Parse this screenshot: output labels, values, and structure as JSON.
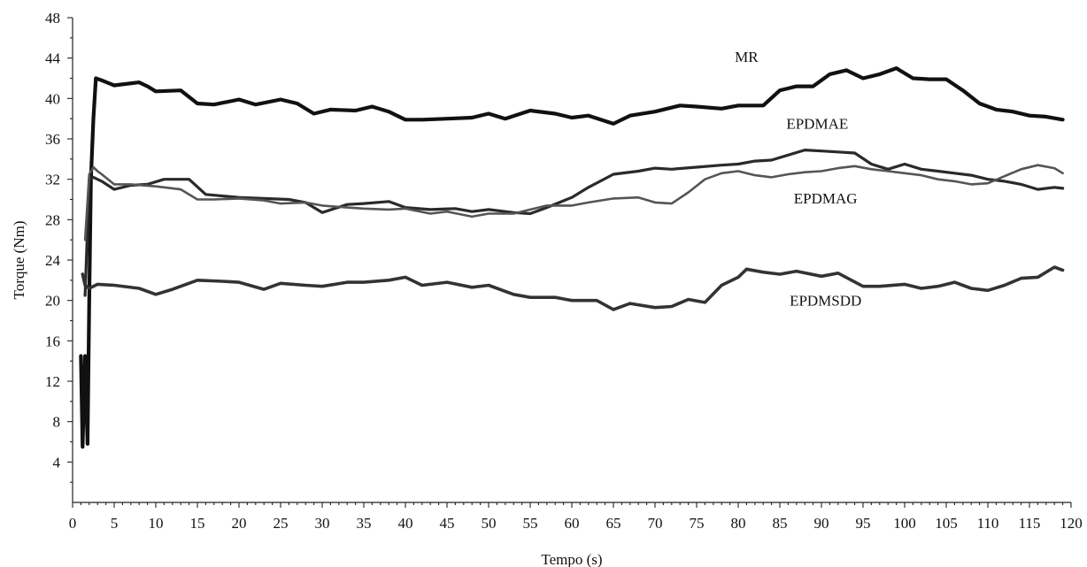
{
  "chart_data": {
    "type": "line",
    "title": "",
    "xlabel": "Tempo (s)",
    "ylabel": "Torque (Nm)",
    "xlim": [
      0,
      120
    ],
    "ylim": [
      0,
      48
    ],
    "x_ticks": [
      0,
      5,
      10,
      15,
      20,
      25,
      30,
      35,
      40,
      45,
      50,
      55,
      60,
      65,
      70,
      75,
      80,
      85,
      90,
      95,
      100,
      105,
      110,
      115,
      120
    ],
    "y_ticks": [
      4,
      8,
      12,
      16,
      20,
      24,
      28,
      32,
      36,
      40,
      44,
      48
    ],
    "grid": false,
    "legend": "none (series labeled directly on plot)",
    "series": [
      {
        "name": "MR",
        "color": "#111111",
        "x": [
          1.0,
          1.2,
          1.5,
          1.8,
          2.0,
          2.2,
          2.5,
          2.8,
          3.5,
          5,
          8,
          9,
          10,
          13,
          15,
          17,
          20,
          22,
          25,
          27,
          29,
          31,
          34,
          36,
          38,
          40,
          42,
          45,
          48,
          50,
          52,
          55,
          58,
          60,
          62,
          65,
          67,
          70,
          73,
          75,
          78,
          80,
          83,
          85,
          87,
          89,
          91,
          93,
          95,
          97,
          99,
          101,
          103,
          105,
          107,
          109,
          111,
          113,
          115,
          117,
          119
        ],
        "y": [
          14.5,
          5.5,
          14.5,
          5.8,
          20.0,
          32.0,
          38.0,
          42.0,
          41.8,
          41.3,
          41.6,
          41.2,
          40.7,
          40.8,
          39.5,
          39.4,
          39.9,
          39.4,
          39.9,
          39.5,
          38.5,
          38.9,
          38.8,
          39.2,
          38.7,
          37.9,
          37.9,
          38.0,
          38.1,
          38.5,
          38.0,
          38.8,
          38.5,
          38.1,
          38.3,
          37.5,
          38.3,
          38.7,
          39.3,
          39.2,
          39.0,
          39.3,
          39.3,
          40.8,
          41.2,
          41.2,
          42.4,
          42.8,
          42.0,
          42.4,
          43.0,
          42.0,
          41.9,
          41.9,
          40.8,
          39.5,
          38.9,
          38.7,
          38.3,
          38.2,
          37.9
        ]
      },
      {
        "name": "EPDMAE",
        "color": "#2a2a2a",
        "x": [
          1.5,
          2.0,
          2.5,
          3.0,
          3.5,
          5,
          7,
          9,
          11,
          14,
          16,
          20,
          23,
          26,
          28,
          30,
          33,
          35,
          38,
          40,
          43,
          46,
          48,
          50,
          53,
          55,
          57,
          60,
          62,
          65,
          68,
          70,
          72,
          75,
          78,
          80,
          82,
          84,
          86,
          88,
          90,
          92,
          94,
          96,
          98,
          100,
          102,
          104,
          106,
          108,
          110,
          112,
          114,
          116,
          118,
          119
        ],
        "y": [
          20.5,
          32.0,
          32.2,
          32.0,
          31.8,
          31.0,
          31.4,
          31.5,
          32.0,
          32.0,
          30.5,
          30.2,
          30.1,
          30.0,
          29.7,
          28.7,
          29.5,
          29.6,
          29.8,
          29.2,
          29.0,
          29.1,
          28.8,
          29.0,
          28.7,
          28.6,
          29.2,
          30.2,
          31.2,
          32.5,
          32.8,
          33.1,
          33.0,
          33.2,
          33.4,
          33.5,
          33.8,
          33.9,
          34.4,
          34.9,
          34.8,
          34.7,
          34.6,
          33.5,
          33.0,
          33.5,
          33.0,
          32.8,
          32.6,
          32.4,
          32.0,
          31.8,
          31.5,
          31.0,
          31.2,
          31.1
        ]
      },
      {
        "name": "EPDMAG",
        "color": "#555555",
        "x": [
          1.5,
          2.0,
          2.5,
          3.0,
          3.5,
          5,
          7,
          10,
          13,
          15,
          17,
          20,
          23,
          25,
          28,
          30,
          33,
          35,
          38,
          40,
          43,
          45,
          48,
          50,
          53,
          55,
          57,
          60,
          62,
          65,
          68,
          70,
          72,
          74,
          76,
          78,
          80,
          82,
          84,
          86,
          88,
          90,
          92,
          94,
          96,
          98,
          100,
          102,
          104,
          106,
          108,
          110,
          112,
          114,
          116,
          118,
          119
        ],
        "y": [
          26.0,
          32.5,
          33.2,
          32.8,
          32.5,
          31.5,
          31.5,
          31.3,
          31.0,
          30.0,
          30.0,
          30.1,
          29.9,
          29.6,
          29.7,
          29.4,
          29.2,
          29.1,
          29.0,
          29.1,
          28.6,
          28.8,
          28.3,
          28.6,
          28.6,
          29.0,
          29.4,
          29.4,
          29.7,
          30.1,
          30.2,
          29.7,
          29.6,
          30.7,
          32.0,
          32.6,
          32.8,
          32.4,
          32.2,
          32.5,
          32.7,
          32.8,
          33.1,
          33.3,
          33.0,
          32.8,
          32.6,
          32.4,
          32.0,
          31.8,
          31.5,
          31.6,
          32.3,
          33.0,
          33.4,
          33.1,
          32.6
        ]
      },
      {
        "name": "EPDMSDD",
        "color": "#333333",
        "x": [
          1.2,
          1.5,
          2,
          3,
          5,
          8,
          10,
          12,
          15,
          18,
          20,
          23,
          25,
          28,
          30,
          33,
          35,
          38,
          40,
          42,
          45,
          48,
          50,
          53,
          55,
          58,
          60,
          63,
          65,
          67,
          70,
          72,
          74,
          76,
          78,
          80,
          81,
          83,
          85,
          87,
          90,
          92,
          95,
          97,
          100,
          102,
          104,
          106,
          108,
          110,
          112,
          114,
          116,
          118,
          119
        ],
        "y": [
          22.6,
          21.5,
          21.2,
          21.6,
          21.5,
          21.2,
          20.6,
          21.1,
          22.0,
          21.9,
          21.8,
          21.1,
          21.7,
          21.5,
          21.4,
          21.8,
          21.8,
          22.0,
          22.3,
          21.5,
          21.8,
          21.3,
          21.5,
          20.6,
          20.3,
          20.3,
          20.0,
          20.0,
          19.1,
          19.7,
          19.3,
          19.4,
          20.1,
          19.8,
          21.5,
          22.3,
          23.1,
          22.8,
          22.6,
          22.9,
          22.4,
          22.7,
          21.4,
          21.4,
          21.6,
          21.2,
          21.4,
          21.8,
          21.2,
          21.0,
          21.5,
          22.2,
          22.3,
          23.3,
          23.0
        ]
      }
    ],
    "annotations": [
      "MR",
      "EPDMAE",
      "EPDMAG",
      "EPDMSDD"
    ]
  }
}
